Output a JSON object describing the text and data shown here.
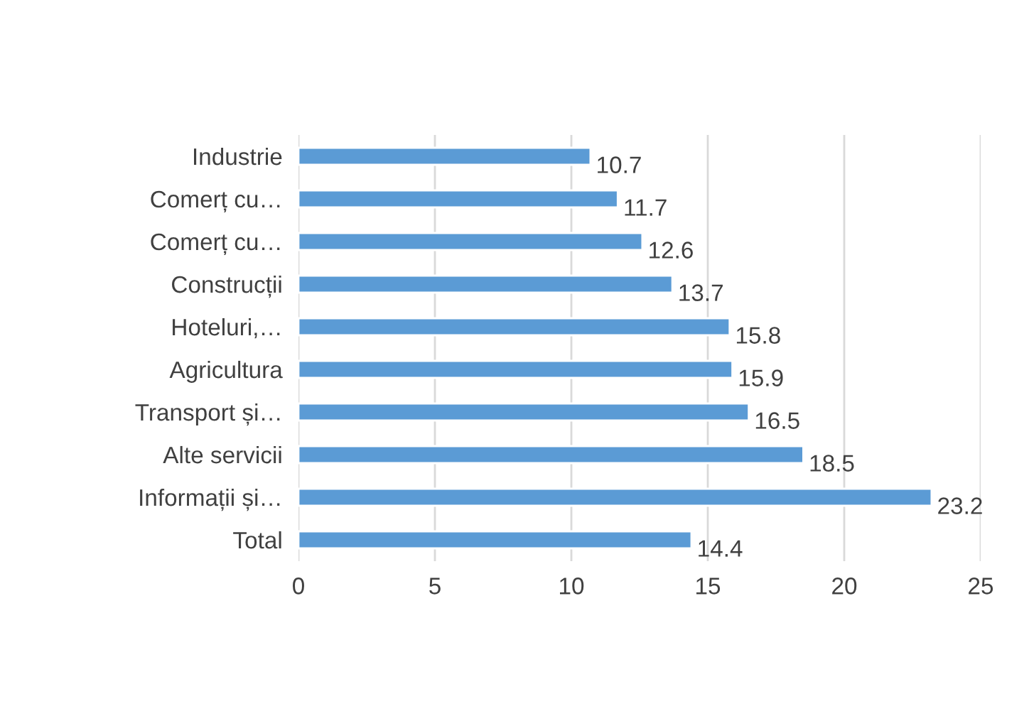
{
  "chart_data": {
    "type": "bar",
    "orientation": "horizontal",
    "categories": [
      "Industrie",
      "Comerț cu…",
      "Comerț cu…",
      "Construcții",
      "Hoteluri,…",
      "Agricultura",
      "Transport și…",
      "Alte servicii",
      "Informații și…",
      "Total"
    ],
    "values": [
      10.7,
      11.7,
      12.6,
      13.7,
      15.8,
      15.9,
      16.5,
      18.5,
      23.2,
      14.4
    ],
    "color": "#5b9bd5",
    "xlim": [
      0,
      25
    ],
    "xticks": [
      0,
      5,
      10,
      15,
      20,
      25
    ],
    "grid": "x",
    "data_labels": true
  }
}
